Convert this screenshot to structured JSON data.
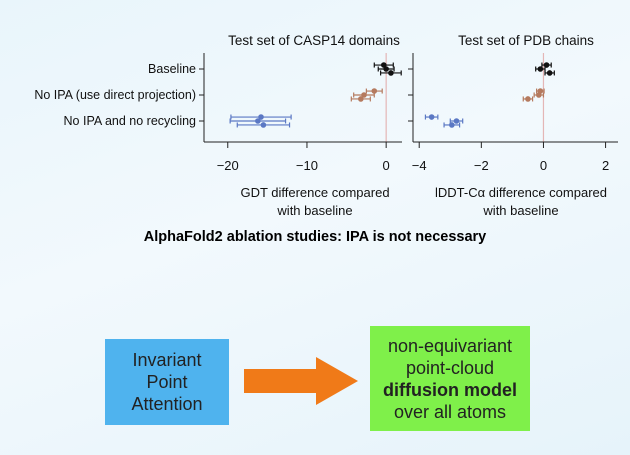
{
  "chart_data": [
    {
      "type": "scatter",
      "title": "Test set of CASP14 domains",
      "categories": [
        "Baseline",
        "No IPA (use direct projection)",
        "No IPA and no recycling"
      ],
      "xlabel": "GDT difference compared with baseline",
      "xlim": [
        -23,
        2
      ],
      "xticks": [
        -20,
        -10,
        0
      ],
      "xtick_labels": [
        "−20",
        "−10",
        "0"
      ],
      "series": [
        {
          "color": "#111111",
          "points": [
            {
              "category": "Baseline",
              "offset": -0.18,
              "x": -0.3,
              "err": 1.2
            },
            {
              "category": "Baseline",
              "offset": 0.0,
              "x": 0.0,
              "err": 1.0
            },
            {
              "category": "Baseline",
              "offset": 0.18,
              "x": 0.6,
              "err": 1.3
            }
          ]
        },
        {
          "color": "#b57a5e",
          "points": [
            {
              "category": "No IPA (use direct projection)",
              "offset": -0.18,
              "x": -1.5,
              "err": 1.0
            },
            {
              "category": "No IPA (use direct projection)",
              "offset": 0.0,
              "x": -2.8,
              "err": 1.3
            },
            {
              "category": "No IPA (use direct projection)",
              "offset": 0.18,
              "x": -3.2,
              "err": 1.2
            }
          ]
        },
        {
          "color": "#5b78c4",
          "points": [
            {
              "category": "No IPA and no recycling",
              "offset": -0.18,
              "x": -15.8,
              "err": 3.8
            },
            {
              "category": "No IPA and no recycling",
              "offset": 0.0,
              "x": -16.2,
              "err": 3.5
            },
            {
              "category": "No IPA and no recycling",
              "offset": 0.18,
              "x": -15.5,
              "err": 3.3
            }
          ]
        }
      ]
    },
    {
      "type": "scatter",
      "title": "Test set of PDB chains",
      "categories": [
        "Baseline",
        "No IPA (use direct projection)",
        "No IPA and no recycling"
      ],
      "xlabel": "lDDT-Cα difference compared with baseline",
      "xlim": [
        -4.2,
        2.4
      ],
      "xticks": [
        -4,
        -2,
        0,
        2
      ],
      "xtick_labels": [
        "−4",
        "−2",
        "0",
        "2"
      ],
      "series": [
        {
          "color": "#111111",
          "points": [
            {
              "category": "Baseline",
              "offset": -0.18,
              "x": 0.1,
              "err": 0.15
            },
            {
              "category": "Baseline",
              "offset": 0.0,
              "x": -0.1,
              "err": 0.15
            },
            {
              "category": "Baseline",
              "offset": 0.18,
              "x": 0.2,
              "err": 0.15
            }
          ]
        },
        {
          "color": "#b57a5e",
          "points": [
            {
              "category": "No IPA (use direct projection)",
              "offset": -0.18,
              "x": -0.1,
              "err": 0.12
            },
            {
              "category": "No IPA (use direct projection)",
              "offset": 0.0,
              "x": -0.15,
              "err": 0.15
            },
            {
              "category": "No IPA (use direct projection)",
              "offset": 0.18,
              "x": -0.5,
              "err": 0.15
            }
          ]
        },
        {
          "color": "#5b78c4",
          "points": [
            {
              "category": "No IPA and no recycling",
              "offset": -0.18,
              "x": -3.6,
              "err": 0.2
            },
            {
              "category": "No IPA and no recycling",
              "offset": 0.0,
              "x": -2.8,
              "err": 0.2
            },
            {
              "category": "No IPA and no recycling",
              "offset": 0.18,
              "x": -2.95,
              "err": 0.25
            }
          ]
        }
      ]
    }
  ],
  "caption": "AlphaFold2 ablation studies: IPA is not necessary",
  "ipa_box": {
    "lines": [
      "Invariant",
      "Point",
      "Attention"
    ],
    "color": "#4fb3ee"
  },
  "arrow": {
    "color": "#f07a18"
  },
  "diffusion_box": {
    "line1": "non-equivariant",
    "line2": "point-cloud",
    "line3": "diffusion model",
    "line4": "over all atoms",
    "color": "#7ff04a"
  }
}
